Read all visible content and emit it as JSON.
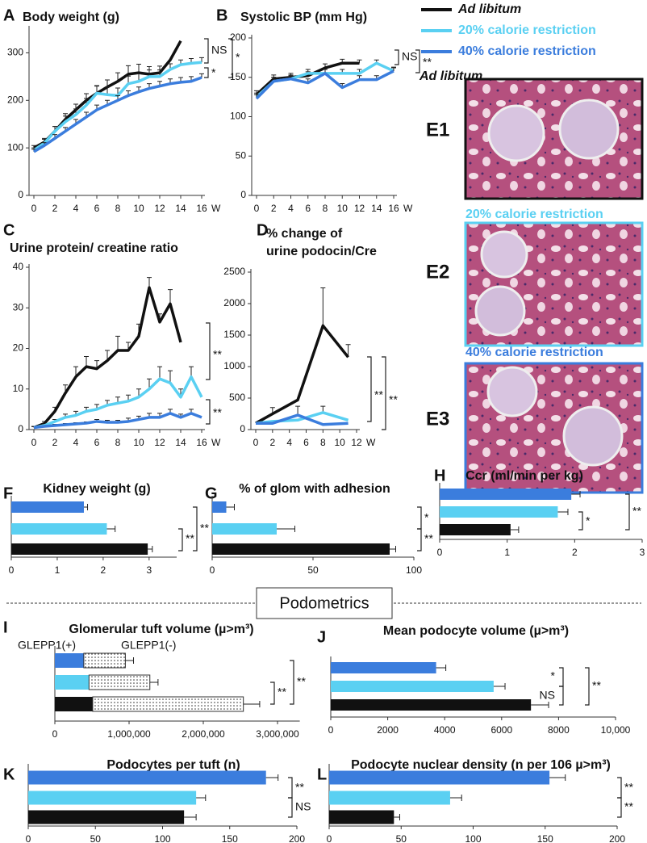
{
  "chart_data": [
    {
      "type": "line",
      "label": "A",
      "title": "Body weight (g)",
      "x_unit": "W",
      "xlim": [
        0,
        16
      ],
      "xticks": [
        0,
        2,
        4,
        6,
        8,
        10,
        12,
        14,
        16
      ],
      "ylim": [
        0,
        350
      ],
      "yticks": [
        0,
        100,
        200,
        300
      ],
      "series": [
        {
          "name": "Ad libitum",
          "color": "#111111",
          "x": [
            0,
            1,
            2,
            3,
            4,
            5,
            6,
            7,
            8,
            9,
            10,
            11,
            12,
            13,
            14
          ],
          "values": [
            100,
            112,
            135,
            160,
            180,
            200,
            215,
            228,
            240,
            255,
            258,
            255,
            258,
            285,
            325
          ],
          "errors": [
            5,
            8,
            10,
            12,
            12,
            14,
            15,
            15,
            18,
            18,
            18,
            16,
            14,
            null,
            null
          ]
        },
        {
          "name": "20% calorie restriction",
          "color": "#5ad0f2",
          "x": [
            0,
            1,
            2,
            3,
            4,
            5,
            6,
            7,
            8,
            9,
            10,
            11,
            12,
            13,
            14,
            15,
            16
          ],
          "values": [
            95,
            110,
            135,
            155,
            170,
            190,
            215,
            212,
            210,
            235,
            240,
            250,
            250,
            265,
            275,
            278,
            280
          ],
          "errors": [
            5,
            8,
            10,
            12,
            12,
            14,
            16,
            16,
            16,
            16,
            16,
            14,
            14,
            12,
            10,
            10,
            10
          ]
        },
        {
          "name": "40% calorie restriction",
          "color": "#3b7ddd",
          "x": [
            0,
            1,
            2,
            3,
            4,
            5,
            6,
            7,
            8,
            9,
            10,
            11,
            12,
            13,
            14,
            15,
            16
          ],
          "values": [
            92,
            105,
            120,
            135,
            150,
            165,
            180,
            190,
            200,
            210,
            218,
            225,
            230,
            235,
            238,
            240,
            248
          ],
          "errors": [
            5,
            6,
            8,
            8,
            10,
            10,
            10,
            10,
            10,
            10,
            10,
            10,
            10,
            10,
            10,
            10,
            8
          ]
        }
      ],
      "annotations": [
        "NS",
        "*",
        "*"
      ]
    },
    {
      "type": "line",
      "label": "B",
      "title": "Systolic BP (mm Hg)",
      "x_unit": "W",
      "xlim": [
        0,
        16
      ],
      "xticks": [
        0,
        2,
        4,
        6,
        8,
        10,
        12,
        14,
        16
      ],
      "ylim": [
        0,
        200
      ],
      "yticks": [
        0,
        50,
        100,
        150,
        200
      ],
      "series": [
        {
          "color": "#111111",
          "x": [
            0,
            2,
            4,
            6,
            8,
            10,
            12
          ],
          "values": [
            128,
            148,
            150,
            152,
            162,
            168,
            168
          ],
          "errors": [
            5,
            5,
            5,
            5,
            5,
            5,
            4
          ]
        },
        {
          "color": "#5ad0f2",
          "x": [
            0,
            2,
            4,
            6,
            8,
            10,
            12,
            14,
            16
          ],
          "values": [
            125,
            145,
            148,
            155,
            155,
            155,
            155,
            168,
            158
          ],
          "errors": [
            5,
            5,
            4,
            5,
            5,
            5,
            5,
            4,
            4
          ]
        },
        {
          "color": "#3b7ddd",
          "x": [
            0,
            2,
            4,
            6,
            8,
            10,
            12,
            14,
            16
          ],
          "values": [
            123,
            145,
            148,
            143,
            155,
            137,
            147,
            147,
            158
          ],
          "errors": [
            5,
            5,
            5,
            5,
            5,
            5,
            5,
            5,
            5
          ]
        }
      ],
      "annotations": [
        "NS",
        "**"
      ]
    },
    {
      "type": "line",
      "label": "C",
      "title": "Urine protein/ creatine ratio",
      "x_unit": "W",
      "xlim": [
        0,
        16
      ],
      "xticks": [
        0,
        2,
        4,
        6,
        8,
        10,
        12,
        14,
        16
      ],
      "ylim": [
        0,
        40
      ],
      "yticks": [
        0,
        10,
        20,
        30,
        40
      ],
      "series": [
        {
          "color": "#111111",
          "x": [
            0,
            1,
            2,
            3,
            4,
            5,
            6,
            7,
            8,
            9,
            10,
            11,
            12,
            13,
            14
          ],
          "values": [
            0.5,
            1.5,
            4.5,
            9,
            13,
            15.5,
            15,
            17,
            19.5,
            19.5,
            23,
            35,
            26.5,
            31,
            21.5
          ],
          "errors": [
            0.3,
            0.5,
            1,
            2,
            2.5,
            2.5,
            2,
            2.5,
            3.5,
            2,
            3,
            2.5,
            2,
            3.5,
            null
          ]
        },
        {
          "color": "#5ad0f2",
          "x": [
            0,
            1,
            2,
            3,
            4,
            5,
            6,
            7,
            8,
            9,
            10,
            11,
            12,
            13,
            14,
            15,
            16
          ],
          "values": [
            0.5,
            1,
            2,
            3,
            3.5,
            4.5,
            5,
            6,
            6.5,
            7,
            8,
            10,
            12.5,
            11.5,
            8,
            13,
            8
          ],
          "errors": [
            0.2,
            0.3,
            0.5,
            0.8,
            1,
            1,
            1.2,
            1.2,
            1.5,
            1.5,
            2,
            2.5,
            3,
            3,
            2,
            2.5,
            null
          ]
        },
        {
          "color": "#3b7ddd",
          "x": [
            0,
            1,
            2,
            3,
            4,
            5,
            6,
            7,
            8,
            9,
            10,
            11,
            12,
            13,
            14,
            15,
            16
          ],
          "values": [
            0.5,
            0.8,
            1,
            1.2,
            1.4,
            1.6,
            2,
            1.8,
            1.8,
            2,
            2.5,
            3,
            3,
            4,
            3,
            4,
            3
          ],
          "errors": [
            0.2,
            0.2,
            0.3,
            0.3,
            0.3,
            0.3,
            0.5,
            0.5,
            0.5,
            0.8,
            0.8,
            1,
            1,
            1,
            0.8,
            1,
            null
          ]
        }
      ],
      "annotations": [
        "**",
        "**"
      ]
    },
    {
      "type": "line",
      "label": "D",
      "title": [
        "% change of",
        "urine podocin/Cre"
      ],
      "x_unit": "W",
      "xlim": [
        0,
        12
      ],
      "xticks": [
        0,
        2,
        4,
        6,
        8,
        10,
        12
      ],
      "ylim": [
        0,
        2500
      ],
      "yticks": [
        0,
        500,
        1000,
        1500,
        2000,
        2500
      ],
      "series": [
        {
          "color": "#111111",
          "x": [
            0,
            2,
            5,
            8,
            11
          ],
          "values": [
            100,
            250,
            470,
            1650,
            1150
          ],
          "errors": [
            null,
            100,
            null,
            600,
            200
          ]
        },
        {
          "color": "#5ad0f2",
          "x": [
            0,
            2,
            5,
            8,
            11
          ],
          "values": [
            100,
            130,
            150,
            270,
            150
          ],
          "errors": [
            null,
            null,
            null,
            100,
            null
          ]
        },
        {
          "color": "#3b7ddd",
          "x": [
            0,
            2,
            5,
            8,
            11
          ],
          "values": [
            100,
            100,
            230,
            80,
            100
          ],
          "errors": [
            null,
            null,
            140,
            null,
            null
          ]
        }
      ],
      "annotations": [
        "**",
        "**"
      ]
    },
    {
      "type": "bar",
      "label": "F",
      "title": "Kidney weight (g)",
      "xlim": [
        0,
        3.6
      ],
      "xticks": [
        0,
        1,
        2,
        3
      ],
      "values": [
        1.58,
        2.08,
        2.97
      ],
      "errors": [
        0.08,
        0.18,
        0.1
      ],
      "colors": [
        "#3b7ddd",
        "#5ad0f2",
        "#111111"
      ],
      "annotations": [
        "**",
        "**"
      ]
    },
    {
      "type": "bar",
      "label": "G",
      "title": "% of glom with adhesion",
      "xlim": [
        0,
        100
      ],
      "xticks": [
        0,
        50,
        100
      ],
      "values": [
        7,
        32,
        88
      ],
      "errors": [
        4,
        9,
        3
      ],
      "colors": [
        "#3b7ddd",
        "#5ad0f2",
        "#111111"
      ],
      "annotations": [
        "*",
        "**"
      ]
    },
    {
      "type": "bar",
      "label": "H",
      "title": "Ccr (ml/min per kg)",
      "xlim": [
        0,
        3
      ],
      "xticks": [
        0,
        1,
        2,
        3
      ],
      "values": [
        1.95,
        1.75,
        1.05
      ],
      "errors": [
        0.13,
        0.15,
        0.12
      ],
      "colors": [
        "#3b7ddd",
        "#5ad0f2",
        "#111111"
      ],
      "annotations": [
        "**",
        "*"
      ]
    },
    {
      "type": "bar",
      "stacked": true,
      "label": "I",
      "title": "Glomerular tuft volume (µ>m³)",
      "xlim": [
        0,
        3300000
      ],
      "xticks": [
        0,
        {
          "value": 1000000,
          "label": "1,000,000"
        },
        {
          "value": 2000000,
          "label": "2,000,000"
        },
        {
          "value": 3000000,
          "label": "3,000,000"
        }
      ],
      "series": [
        {
          "name": "GLEPP1(+)",
          "values": [
            390000,
            460000,
            510000
          ],
          "colors": [
            "#3b7ddd",
            "#5ad0f2",
            "#111111"
          ]
        },
        {
          "name": "GLEPP1(-)",
          "values": [
            560000,
            820000,
            2030000
          ],
          "pattern": "dots"
        }
      ],
      "errors": [
        110000,
        110000,
        220000
      ],
      "annotations": [
        "**",
        "**"
      ]
    },
    {
      "type": "bar",
      "label": "J",
      "title": "Mean podocyte volume (µ>m³)",
      "xlim": [
        0,
        10000
      ],
      "xticks": [
        0,
        2000,
        4000,
        6000,
        8000,
        {
          "value": 10000,
          "label": "10,000"
        }
      ],
      "values": [
        3700,
        5720,
        7030
      ],
      "errors": [
        340,
        400,
        620
      ],
      "colors": [
        "#3b7ddd",
        "#5ad0f2",
        "#111111"
      ],
      "annotations": [
        "*",
        "NS",
        "**"
      ]
    },
    {
      "type": "bar",
      "label": "K",
      "title": "Podocytes per tuft (n)",
      "xlim": [
        0,
        200
      ],
      "xticks": [
        0,
        50,
        100,
        150,
        200
      ],
      "values": [
        177,
        125,
        116
      ],
      "errors": [
        9,
        7,
        9
      ],
      "colors": [
        "#3b7ddd",
        "#5ad0f2",
        "#111111"
      ],
      "annotations": [
        "**",
        "NS"
      ]
    },
    {
      "type": "bar",
      "label": "L",
      "title": "Podocyte nuclear density (n per 106 µ>m³)",
      "xlim": [
        0,
        200
      ],
      "xticks": [
        0,
        50,
        100,
        150,
        200
      ],
      "values": [
        153,
        84,
        45
      ],
      "errors": [
        11,
        8,
        4
      ],
      "colors": [
        "#3b7ddd",
        "#5ad0f2",
        "#111111"
      ],
      "annotations": [
        "**",
        "**"
      ]
    }
  ],
  "images": [
    {
      "label": "E1",
      "caption": "Ad libitum"
    },
    {
      "label": "E2",
      "caption": "20% calorie restriction"
    },
    {
      "label": "E3",
      "caption": "40% calorie restriction"
    }
  ],
  "divider": "Podometrics"
}
